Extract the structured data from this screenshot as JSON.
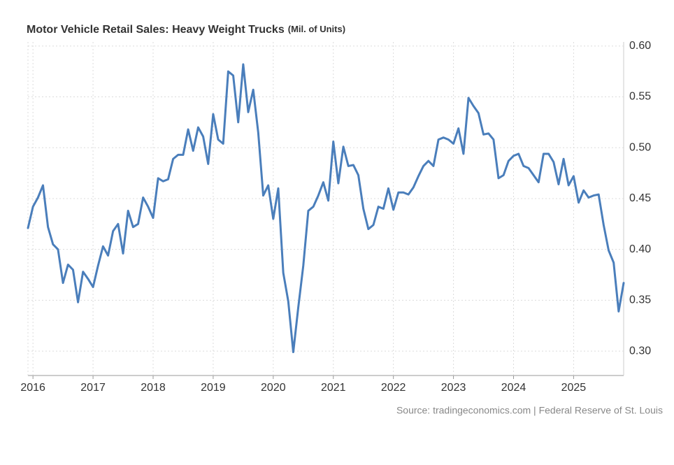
{
  "chart_data": {
    "type": "line",
    "title": "Motor Vehicle Retail Sales: Heavy Weight Trucks",
    "subtitle": "(Mil. of Units)",
    "source": "Source: tradingeconomics.com | Federal Reserve of St. Louis",
    "categories": [
      null,
      "2016",
      null,
      null,
      null,
      null,
      null,
      null,
      null,
      null,
      null,
      null,
      null,
      "2017",
      null,
      null,
      null,
      null,
      null,
      null,
      null,
      null,
      null,
      null,
      null,
      "2018",
      null,
      null,
      null,
      null,
      null,
      null,
      null,
      null,
      null,
      null,
      null,
      "2019",
      null,
      null,
      null,
      null,
      null,
      null,
      null,
      null,
      null,
      null,
      null,
      "2020",
      null,
      null,
      null,
      null,
      null,
      null,
      null,
      null,
      null,
      null,
      null,
      "2021",
      null,
      null,
      null,
      null,
      null,
      null,
      null,
      null,
      null,
      null,
      null,
      "2022",
      null,
      null,
      null,
      null,
      null,
      null,
      null,
      null,
      null,
      null,
      null,
      "2023",
      null,
      null,
      null,
      null,
      null,
      null,
      null,
      null,
      null,
      null,
      null,
      "2024",
      null,
      null,
      null,
      null,
      null,
      null,
      null,
      null,
      null,
      null,
      null,
      "2025",
      null,
      null,
      null,
      null,
      null,
      null,
      null,
      null,
      null,
      null
    ],
    "series": [
      {
        "name": "Heavy Weight Trucks",
        "color": "#4a7ebb",
        "values": [
          0.421,
          0.442,
          0.451,
          0.463,
          0.422,
          0.405,
          0.4,
          0.367,
          0.385,
          0.38,
          0.348,
          0.378,
          0.371,
          0.363,
          0.384,
          0.403,
          0.394,
          0.418,
          0.425,
          0.396,
          0.438,
          0.422,
          0.425,
          0.451,
          0.442,
          0.431,
          0.47,
          0.467,
          0.469,
          0.489,
          0.493,
          0.493,
          0.518,
          0.497,
          0.52,
          0.511,
          0.484,
          0.533,
          0.508,
          0.504,
          0.575,
          0.571,
          0.525,
          0.582,
          0.535,
          0.557,
          0.515,
          0.453,
          0.463,
          0.43,
          0.46,
          0.377,
          0.349,
          0.299,
          0.343,
          0.384,
          0.438,
          0.442,
          0.453,
          0.466,
          0.448,
          0.506,
          0.465,
          0.501,
          0.482,
          0.483,
          0.473,
          0.44,
          0.42,
          0.424,
          0.442,
          0.44,
          0.46,
          0.439,
          0.456,
          0.456,
          0.454,
          0.461,
          0.472,
          0.482,
          0.487,
          0.482,
          0.508,
          0.51,
          0.508,
          0.504,
          0.519,
          0.494,
          0.549,
          0.541,
          0.534,
          0.513,
          0.514,
          0.508,
          0.47,
          0.473,
          0.487,
          0.492,
          0.494,
          0.482,
          0.48,
          0.473,
          0.466,
          0.494,
          0.494,
          0.486,
          0.464,
          0.489,
          0.463,
          0.472,
          0.446,
          0.458,
          0.451,
          0.453,
          0.454,
          0.424,
          0.399,
          0.387,
          0.339,
          0.367
        ]
      }
    ],
    "ylim": [
      0.276,
      0.604
    ],
    "yticks": [
      {
        "value": 0.3,
        "label": "0.30"
      },
      0.35,
      {
        "value": 0.4,
        "label": "0.40"
      },
      0.45,
      {
        "value": 0.5,
        "label": "0.50"
      },
      0.55,
      {
        "value": 0.6,
        "label": "0.60"
      }
    ],
    "grid": true
  }
}
